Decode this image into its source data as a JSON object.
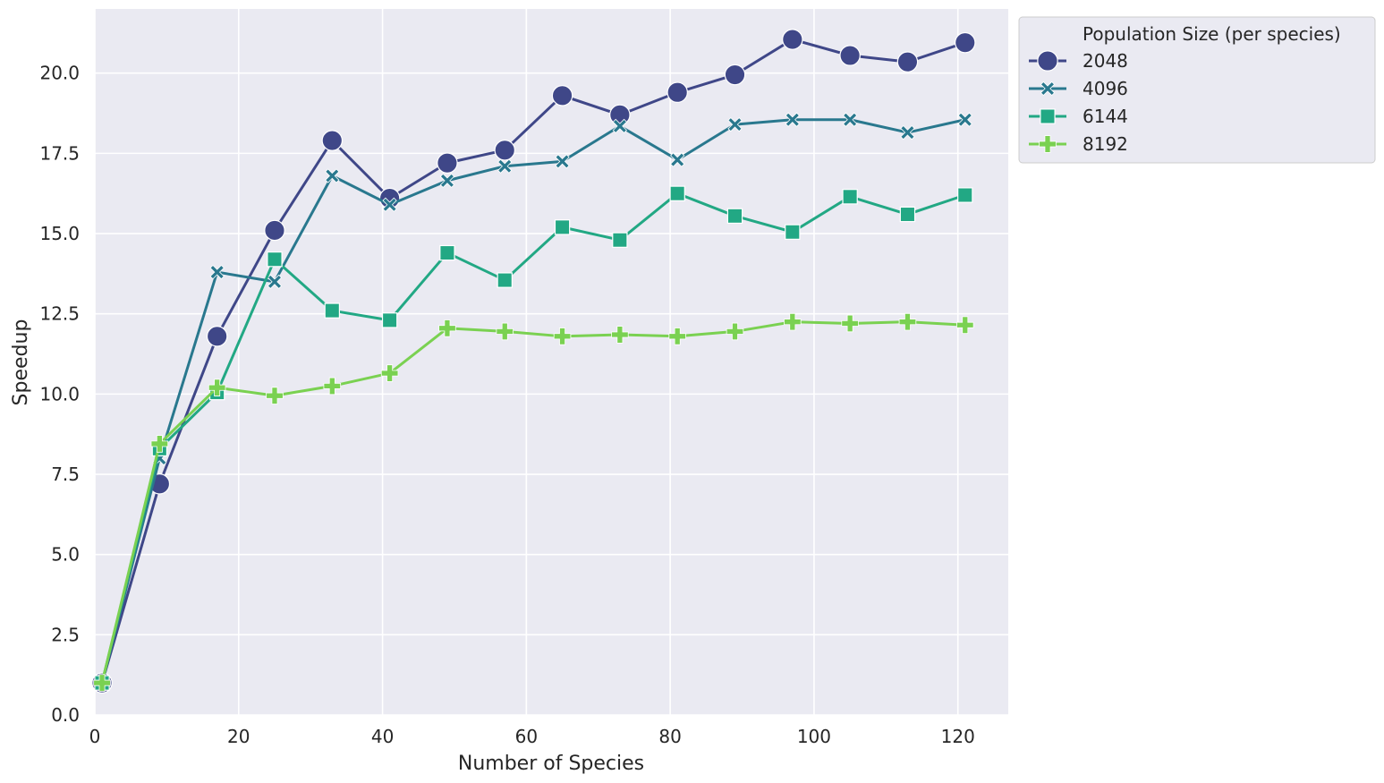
{
  "chart_data": {
    "type": "line",
    "xlabel": "Number of Species",
    "ylabel": "Speedup",
    "xlim": [
      0,
      127
    ],
    "ylim": [
      0,
      22
    ],
    "xticks": [
      0,
      20,
      40,
      60,
      80,
      100,
      120
    ],
    "yticks": [
      0.0,
      2.5,
      5.0,
      7.5,
      10.0,
      12.5,
      15.0,
      17.5,
      20.0
    ],
    "grid": true,
    "legend": {
      "title": "Population Size (per species)",
      "placement": "outside-upper-right"
    },
    "x": [
      1,
      9,
      17,
      25,
      33,
      41,
      49,
      57,
      65,
      73,
      81,
      89,
      97,
      105,
      113,
      121
    ],
    "series": [
      {
        "name": "2048",
        "color": "#3f4788",
        "marker": "circle",
        "values": [
          1.0,
          7.2,
          11.8,
          15.1,
          17.9,
          16.1,
          17.2,
          17.6,
          19.3,
          18.7,
          19.4,
          19.95,
          21.05,
          20.55,
          20.35,
          20.95
        ]
      },
      {
        "name": "4096",
        "color": "#29788e",
        "marker": "x",
        "values": [
          1.0,
          8.0,
          13.8,
          13.5,
          16.8,
          15.9,
          16.65,
          17.1,
          17.25,
          18.35,
          17.3,
          18.4,
          18.55,
          18.55,
          18.15,
          18.55
        ]
      },
      {
        "name": "6144",
        "color": "#22a884",
        "marker": "square",
        "values": [
          1.0,
          8.3,
          10.05,
          14.2,
          12.6,
          12.3,
          14.4,
          13.55,
          15.2,
          14.8,
          16.25,
          15.55,
          15.05,
          16.15,
          15.6,
          16.2
        ]
      },
      {
        "name": "8192",
        "color": "#7ad151",
        "marker": "plus",
        "values": [
          1.0,
          8.45,
          10.2,
          9.95,
          10.25,
          10.65,
          12.05,
          11.95,
          11.8,
          11.85,
          11.8,
          11.95,
          12.25,
          12.2,
          12.25,
          12.15
        ]
      }
    ]
  }
}
